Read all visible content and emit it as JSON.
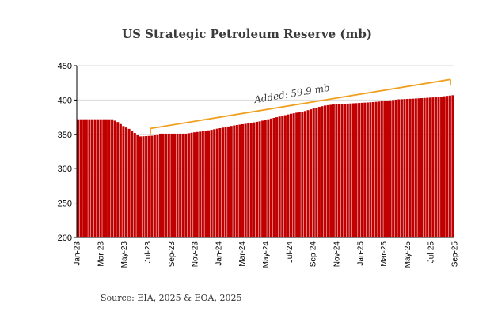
{
  "chart_data": {
    "type": "bar",
    "title": "US Strategic Petroleum Reserve (mb)",
    "source": "Source: EIA, 2025 & EOA, 2025",
    "ylim": [
      200,
      450
    ],
    "yticks": [
      200,
      250,
      300,
      350,
      400,
      450
    ],
    "xtick_labels": [
      "Jan-23",
      "Mar-23",
      "May-23",
      "Jul-23",
      "Sep-23",
      "Nov-23",
      "Jan-24",
      "Mar-24",
      "May-24",
      "Jul-24",
      "Sep-24",
      "Nov-24",
      "Jan-25",
      "Mar-25",
      "May-25",
      "Jul-25",
      "Sep-25"
    ],
    "bar_color": "#c00000",
    "annotation": {
      "text": "Added: 59.9 mb",
      "color": "#f0a020",
      "from": 347,
      "to": 407
    },
    "anchors": [
      [
        0,
        372
      ],
      [
        12,
        372
      ],
      [
        14,
        368
      ],
      [
        16,
        362
      ],
      [
        18,
        358
      ],
      [
        20,
        352
      ],
      [
        21,
        349
      ],
      [
        22,
        347
      ],
      [
        26,
        348
      ],
      [
        29,
        351
      ],
      [
        33,
        351
      ],
      [
        38,
        351
      ],
      [
        41,
        353
      ],
      [
        45,
        355
      ],
      [
        50,
        359
      ],
      [
        55,
        363
      ],
      [
        60,
        366
      ],
      [
        64,
        369
      ],
      [
        68,
        373
      ],
      [
        72,
        377
      ],
      [
        75,
        380
      ],
      [
        80,
        384
      ],
      [
        84,
        389
      ],
      [
        87,
        392
      ],
      [
        91,
        394
      ],
      [
        96,
        395
      ],
      [
        100,
        396
      ],
      [
        104,
        397
      ],
      [
        109,
        399
      ],
      [
        113,
        401
      ],
      [
        118,
        402
      ],
      [
        122,
        403
      ],
      [
        126,
        404
      ],
      [
        132,
        407
      ]
    ],
    "num_bars": 133
  }
}
